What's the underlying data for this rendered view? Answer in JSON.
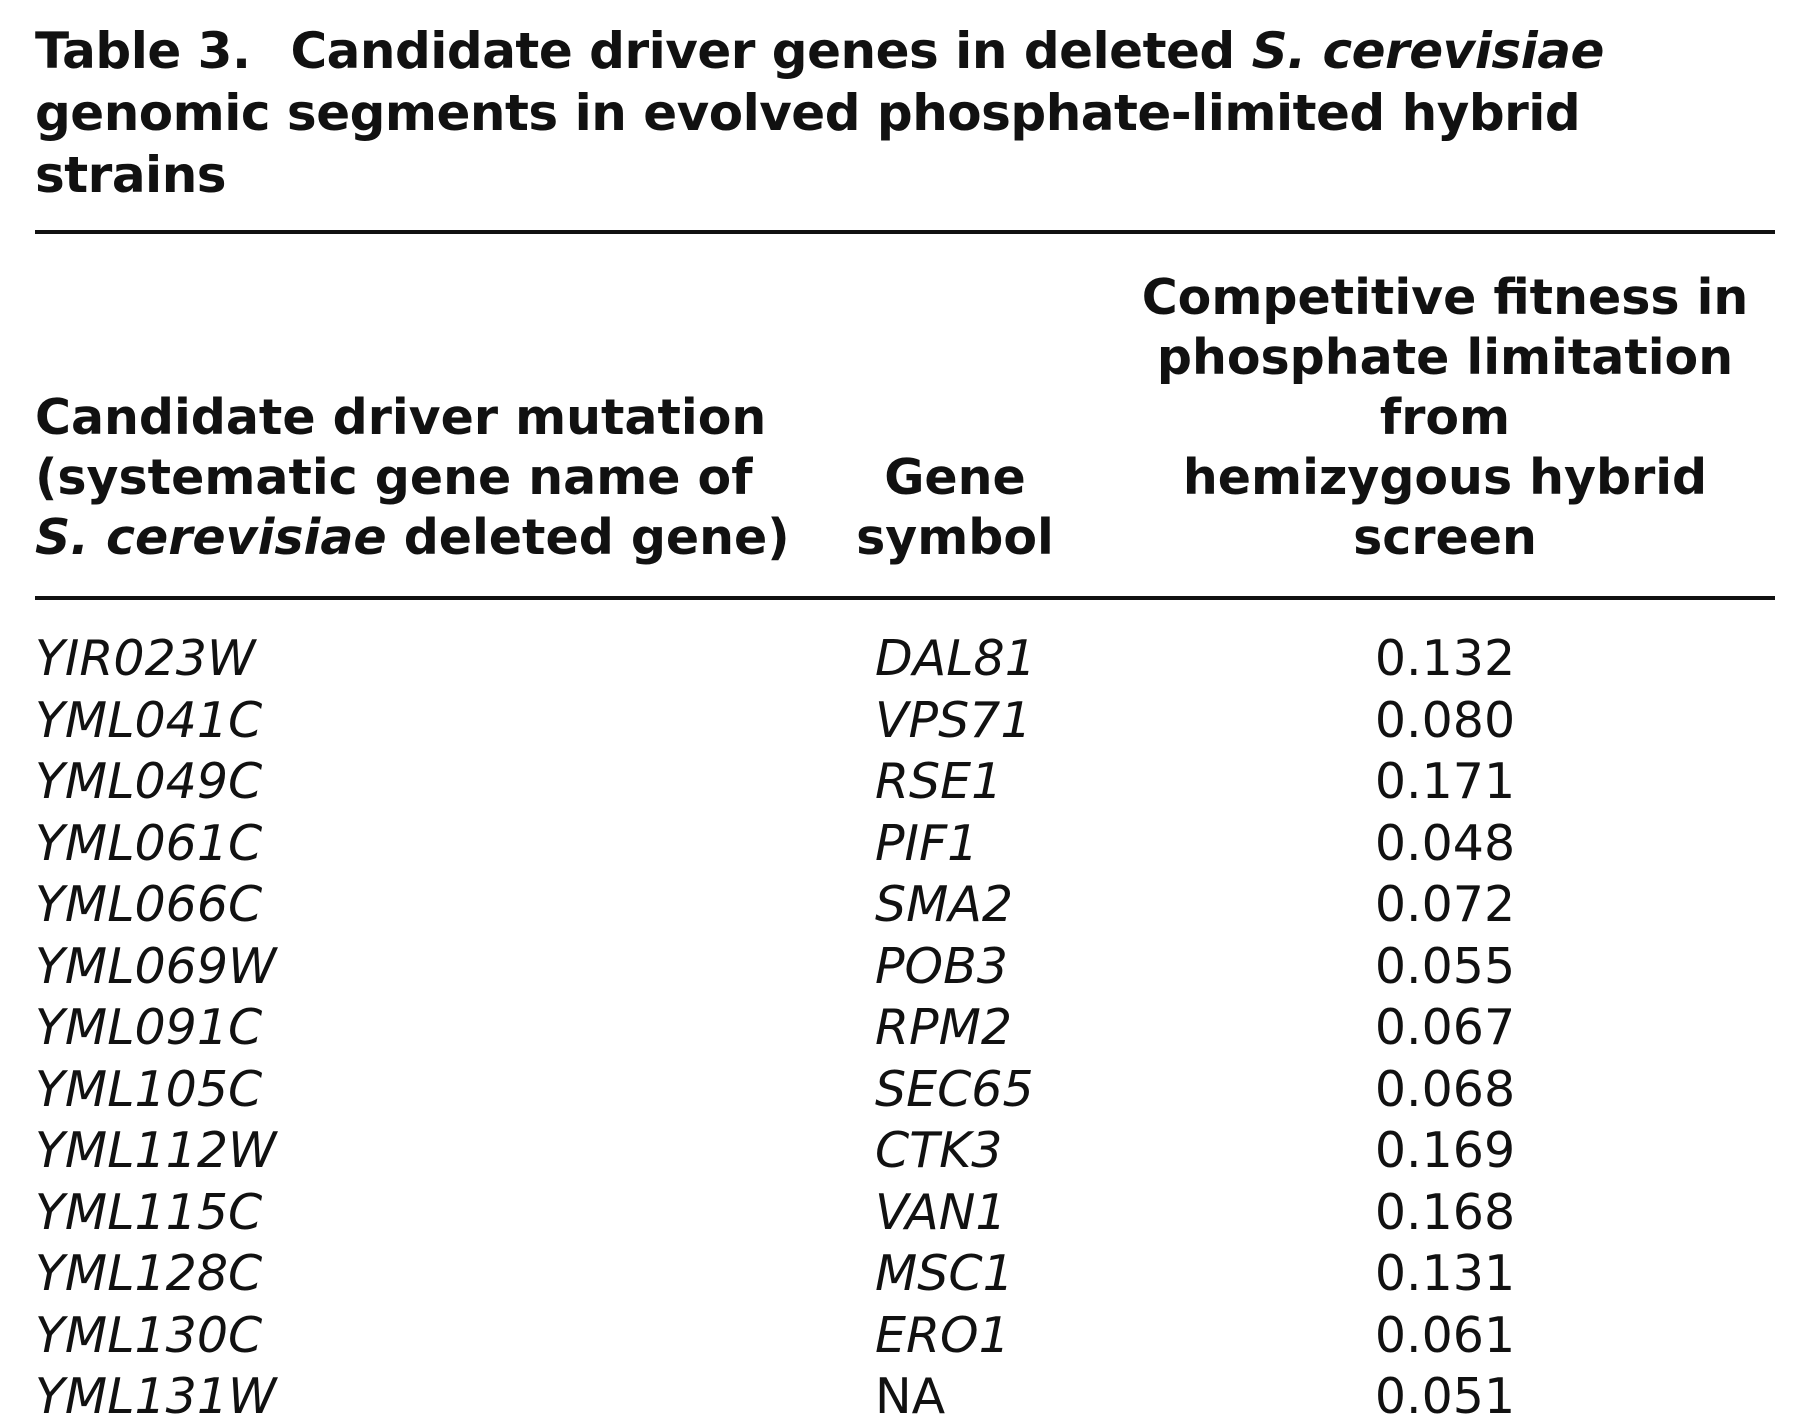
{
  "caption": {
    "label": "Table 3.",
    "text_before_italic": "Candidate driver genes in deleted ",
    "italic": "S. cerevisiae",
    "text_after_italic": " genomic segments in evolved phosphate-limited hybrid strains"
  },
  "headers": {
    "col1": {
      "line1": "Candidate driver mutation",
      "line2": "(systematic gene name of",
      "line3_italic": "S. cerevisiae",
      "line3_rest": " deleted gene)"
    },
    "col2": {
      "line1": "Gene",
      "line2": "symbol"
    },
    "col3": {
      "line1": "Competitive fitness in",
      "line2": "phosphate limitation from",
      "line3": "hemizygous hybrid screen"
    }
  },
  "rows": [
    {
      "systematic": "YIR023W",
      "symbol": "DAL81",
      "fitness": "0.132"
    },
    {
      "systematic": "YML041C",
      "symbol": "VPS71",
      "fitness": "0.080"
    },
    {
      "systematic": "YML049C",
      "symbol": "RSE1",
      "fitness": "0.171"
    },
    {
      "systematic": "YML061C",
      "symbol": "PIF1",
      "fitness": "0.048"
    },
    {
      "systematic": "YML066C",
      "symbol": "SMA2",
      "fitness": "0.072"
    },
    {
      "systematic": "YML069W",
      "symbol": "POB3",
      "fitness": "0.055"
    },
    {
      "systematic": "YML091C",
      "symbol": "RPM2",
      "fitness": "0.067"
    },
    {
      "systematic": "YML105C",
      "symbol": "SEC65",
      "fitness": "0.068"
    },
    {
      "systematic": "YML112W",
      "symbol": "CTK3",
      "fitness": "0.169"
    },
    {
      "systematic": "YML115C",
      "symbol": "VAN1",
      "fitness": "0.168"
    },
    {
      "systematic": "YML128C",
      "symbol": "MSC1",
      "fitness": "0.131"
    },
    {
      "systematic": "YML130C",
      "symbol": "ERO1",
      "fitness": "0.061"
    },
    {
      "systematic": "YML131W",
      "symbol": "NA",
      "fitness": "0.051"
    }
  ]
}
